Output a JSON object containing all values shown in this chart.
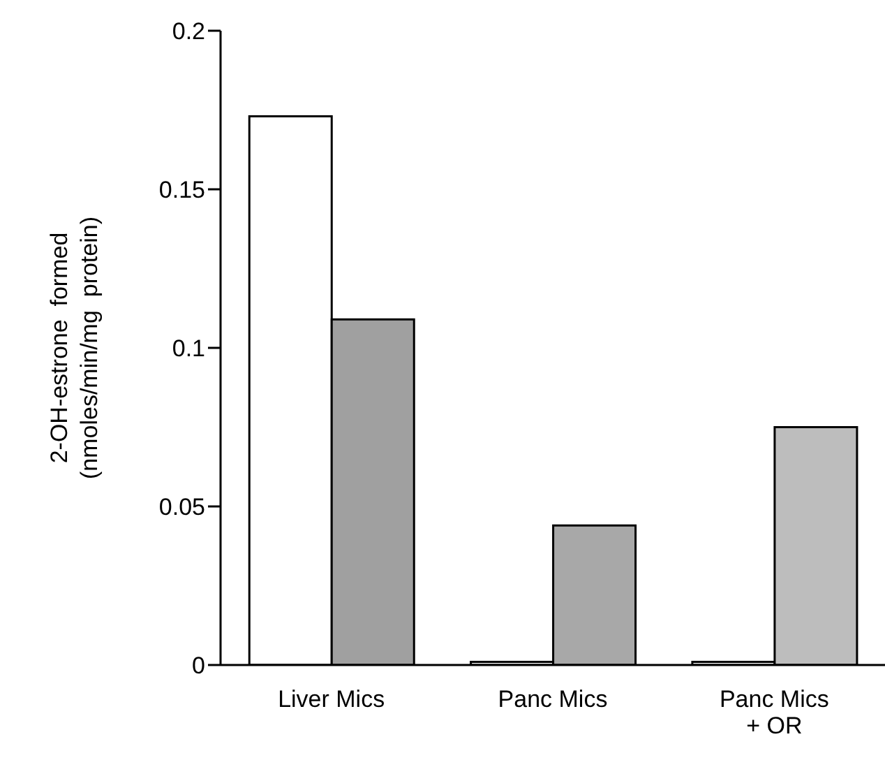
{
  "chart_data": {
    "type": "bar",
    "ylabel": "2-OH-estrone  formed\n(nmoles/min/mg  protein)",
    "categories": [
      "Liver Mics",
      "Panc Mics",
      "Panc Mics\n+ OR"
    ],
    "series": [
      {
        "color": "#ffffff",
        "values": [
          0.173,
          0.001,
          0.001
        ]
      },
      {
        "color": "#a0a0a0",
        "colors": [
          "#a0a0a0",
          "#a8a8a8",
          "#bdbdbd"
        ],
        "values": [
          0.109,
          0.044,
          0.075
        ]
      }
    ],
    "ylim": [
      0,
      0.2
    ],
    "yticks": [
      0,
      0.05,
      0.1,
      0.15,
      0.2
    ],
    "grid": false,
    "legend": false
  }
}
